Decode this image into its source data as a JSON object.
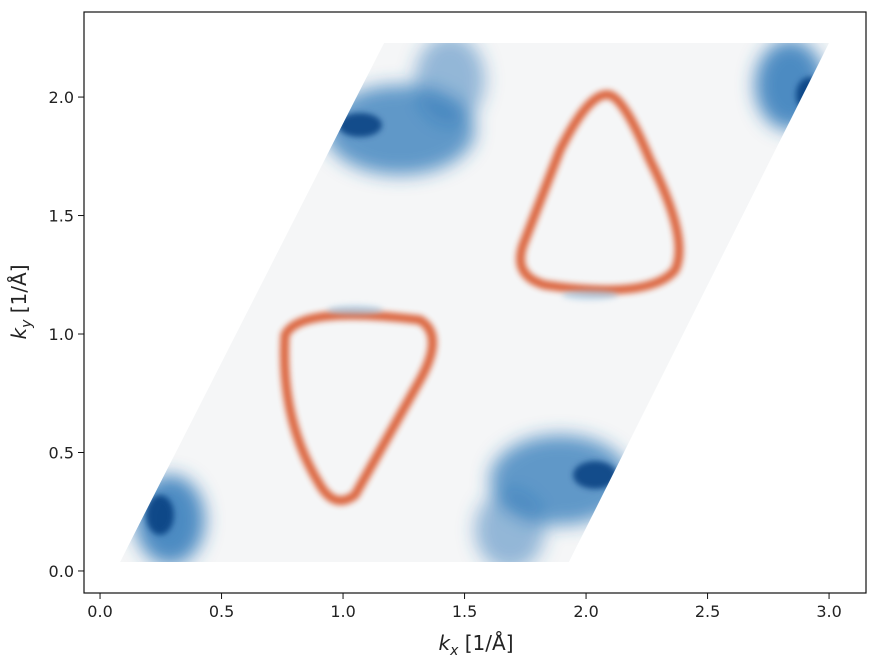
{
  "chart_data": {
    "type": "heatmap",
    "xlabel": [
      "k",
      "x",
      " [1/Å]"
    ],
    "ylabel": [
      "k",
      "y",
      " [1/Å]"
    ],
    "xlim": [
      -0.066,
      3.152
    ],
    "ylim": [
      -0.093,
      2.359
    ],
    "xticks": [
      {
        "value": 0,
        "label": "0.0"
      },
      0.5,
      {
        "value": 1,
        "label": "1.0"
      },
      1.5,
      {
        "value": 2,
        "label": "2.0"
      },
      2.5,
      {
        "value": 3,
        "label": "3.0"
      }
    ],
    "yticks": [
      {
        "value": 0,
        "label": "0.0"
      },
      0.5,
      {
        "value": 1,
        "label": "1.0"
      },
      1.5,
      {
        "value": 2,
        "label": "2.0"
      }
    ]
  }
}
